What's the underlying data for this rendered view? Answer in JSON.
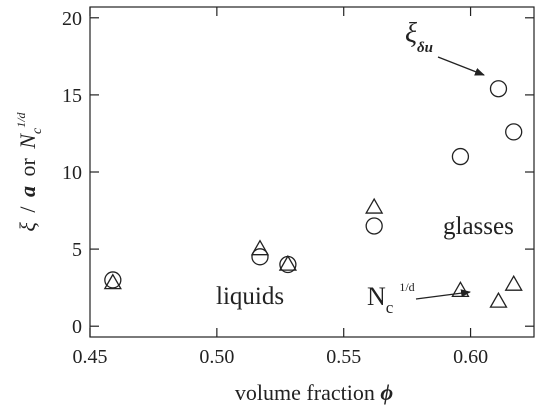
{
  "chart_data": {
    "type": "scatter",
    "title": "",
    "xlabel": {
      "text": "volume fraction",
      "symbol": "ϕ"
    },
    "ylabel": {
      "xi": "ξ",
      "slash": "/",
      "a": "a",
      "or": "or",
      "n": "N",
      "sub": "c",
      "sup": "1/d"
    },
    "xlim": [
      0.45,
      0.625
    ],
    "ylim": [
      -0.7,
      20.7
    ],
    "x_ticks": [
      0.45,
      0.5,
      0.55,
      0.6
    ],
    "x_tick_labels": [
      "0.45",
      "0.50",
      "0.55",
      "0.60"
    ],
    "y_ticks": [
      0,
      5,
      10,
      15,
      20
    ],
    "y_tick_labels": [
      "0",
      "5",
      "10",
      "15",
      "20"
    ],
    "grid": false,
    "series": [
      {
        "marker": "circle",
        "x": [
          0.459,
          0.517,
          0.528,
          0.562,
          0.596,
          0.611,
          0.617
        ],
        "y": [
          3.0,
          4.5,
          4.0,
          6.5,
          11.0,
          15.4,
          12.6
        ]
      },
      {
        "marker": "triangle",
        "x": [
          0.459,
          0.517,
          0.528,
          0.562,
          0.596,
          0.611,
          0.617
        ],
        "y": [
          2.8,
          5.0,
          4.0,
          7.7,
          2.3,
          1.6,
          2.7
        ]
      }
    ],
    "annotations": {
      "xi_du": {
        "main": "ξ",
        "sub": "δu"
      },
      "nc": {
        "main": "N",
        "sub": "c",
        "sup": "1/d"
      },
      "glasses": "glasses",
      "liquids": "liquids"
    }
  }
}
